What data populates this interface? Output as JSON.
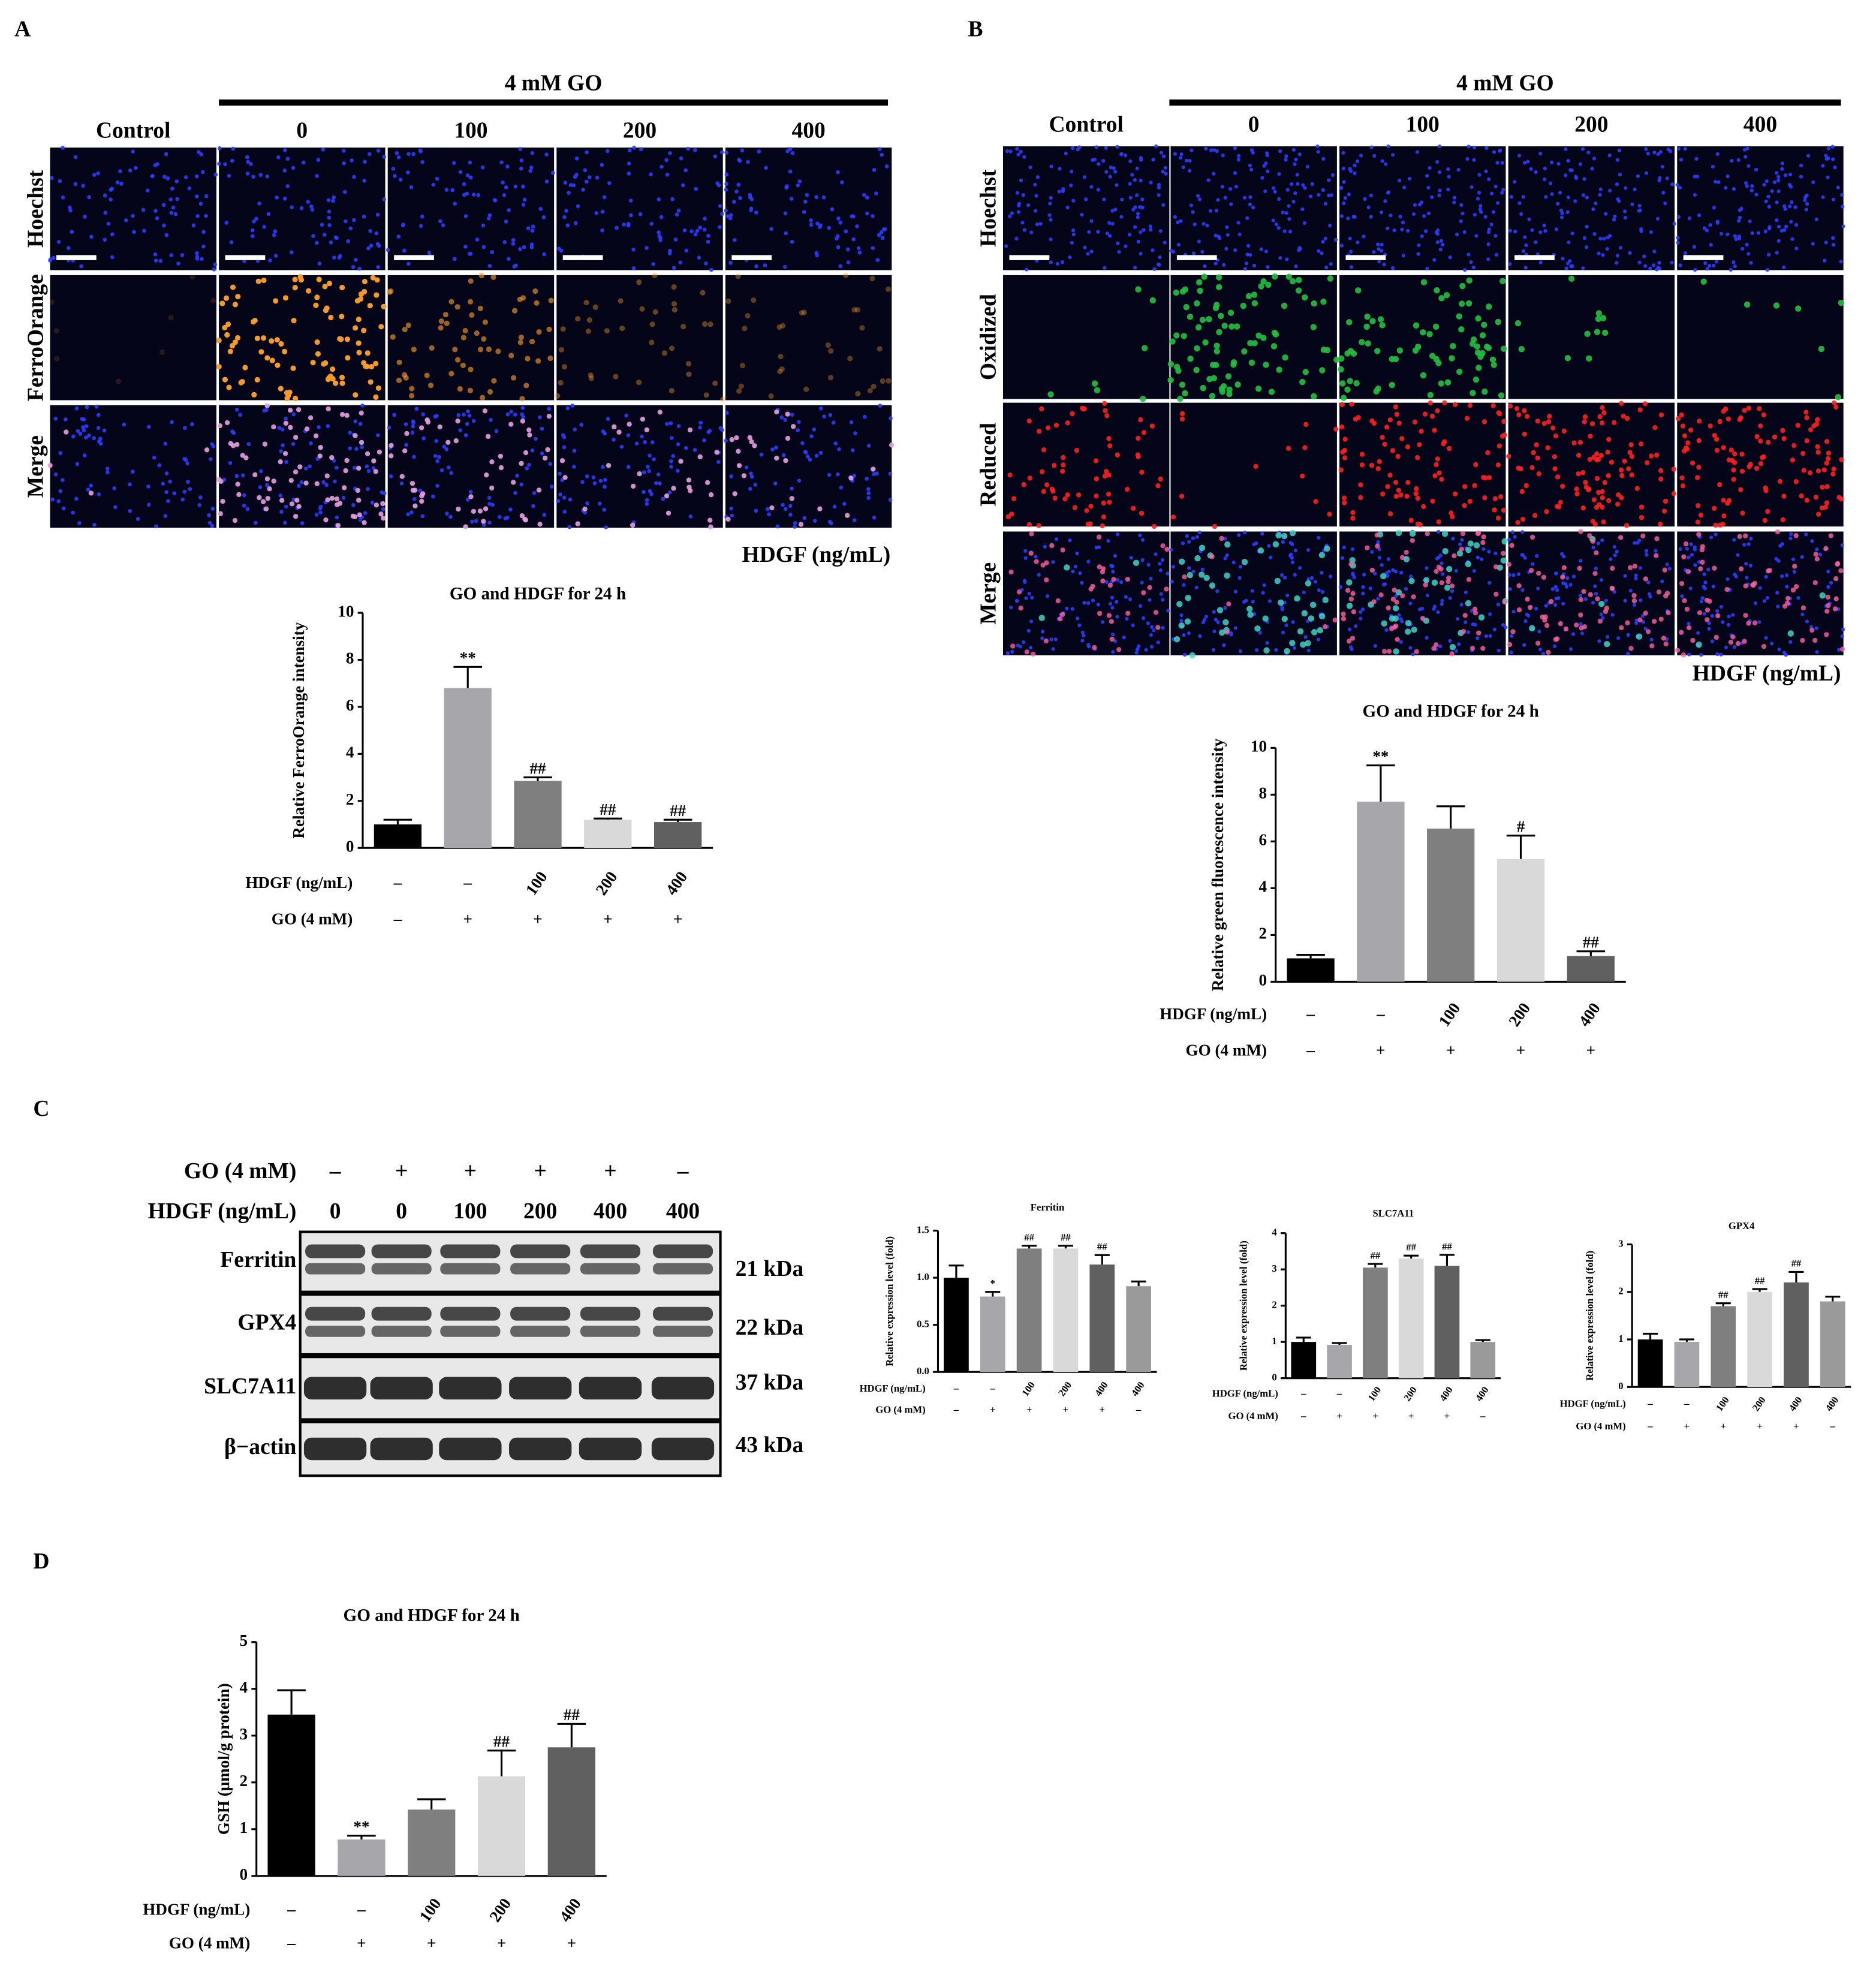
{
  "panel_labels": [
    "A",
    "B",
    "C",
    "D"
  ],
  "panel_a": {
    "group": "4 mM GO",
    "columns": [
      "Control",
      "0",
      "100",
      "200",
      "400"
    ],
    "rows": [
      "Hoechst",
      "FerroOrange",
      "Merge"
    ],
    "axis_label": "HDGF (ng/mL)"
  },
  "panel_b": {
    "group": "4 mM GO",
    "columns": [
      "Control",
      "0",
      "100",
      "200",
      "400"
    ],
    "rows": [
      "Hoechst",
      "Oxidized",
      "Reduced",
      "Merge"
    ],
    "axis_label": "HDGF (ng/mL)"
  },
  "blot": {
    "conditions": [
      {
        "label": "GO (4 mM)",
        "values": [
          "–",
          "+",
          "+",
          "+",
          "+",
          "–"
        ]
      },
      {
        "label": "HDGF (ng/mL)",
        "values": [
          "0",
          "0",
          "100",
          "200",
          "400",
          "400"
        ]
      }
    ],
    "bands": [
      {
        "name": "Ferritin",
        "size": "21 kDa"
      },
      {
        "name": "GPX4",
        "size": "22 kDa"
      },
      {
        "name": "SLC7A11",
        "size": "37 kDa"
      },
      {
        "name": "β−actin",
        "size": "43 kDa"
      }
    ]
  },
  "chart_data": [
    {
      "type": "bar",
      "title": "GO and HDGF for 24 h",
      "ylabel": "Relative FerroOrange intensity",
      "ylim": [
        0,
        10
      ],
      "yticks": [
        0,
        2,
        4,
        6,
        8,
        10
      ],
      "values": [
        1.0,
        6.8,
        2.85,
        1.2,
        1.1
      ],
      "errors": [
        0.2,
        0.9,
        0.15,
        0.05,
        0.1
      ],
      "annotations": [
        null,
        "**",
        "##",
        "##",
        "##"
      ],
      "colors": [
        "#000000",
        "#a6a6ab",
        "#7f7f7f",
        "#d9d9d9",
        "#606060"
      ],
      "conditions": [
        {
          "label": "HDGF (ng/mL)",
          "values": [
            "–",
            "–",
            "100",
            "200",
            "400"
          ]
        },
        {
          "label": "GO (4 mM)",
          "values": [
            "–",
            "+",
            "+",
            "+",
            "+"
          ]
        }
      ]
    },
    {
      "type": "bar",
      "title": "GO and HDGF for 24 h",
      "ylabel": "Relative green fluorescence intensity",
      "ylim": [
        0,
        10
      ],
      "yticks": [
        0,
        2,
        4,
        6,
        8,
        10
      ],
      "values": [
        1.0,
        7.7,
        6.55,
        5.25,
        1.1
      ],
      "errors": [
        0.15,
        1.55,
        0.95,
        1.0,
        0.2
      ],
      "annotations": [
        null,
        "**",
        null,
        "#",
        "##"
      ],
      "colors": [
        "#000000",
        "#a6a6ab",
        "#7f7f7f",
        "#d9d9d9",
        "#606060"
      ],
      "conditions": [
        {
          "label": "HDGF (ng/mL)",
          "values": [
            "–",
            "–",
            "100",
            "200",
            "400"
          ]
        },
        {
          "label": "GO (4 mM)",
          "values": [
            "–",
            "+",
            "+",
            "+",
            "+"
          ]
        }
      ]
    },
    {
      "type": "bar",
      "title": "Ferritin",
      "ylabel": "Relative expression level (fold)",
      "ylim": [
        0,
        1.5
      ],
      "yticks": [
        {
          "value": 0,
          "label": "0.0"
        },
        0.5,
        {
          "value": 1,
          "label": "1.0"
        },
        1.5
      ],
      "values": [
        1.0,
        0.8,
        1.31,
        1.31,
        1.14,
        0.91
      ],
      "errors": [
        0.13,
        0.05,
        0.03,
        0.03,
        0.1,
        0.05
      ],
      "annotations": [
        null,
        "*",
        "##",
        "##",
        "##",
        null
      ],
      "colors": [
        "#000000",
        "#a6a6ab",
        "#7f7f7f",
        "#d9d9d9",
        "#606060",
        "#9a9a9a"
      ],
      "conditions": [
        {
          "label": "HDGF (ng/mL)",
          "values": [
            "–",
            "–",
            "100",
            "200",
            "400",
            "400"
          ]
        },
        {
          "label": "GO (4 mM)",
          "values": [
            "–",
            "+",
            "+",
            "+",
            "+",
            "–"
          ]
        }
      ]
    },
    {
      "type": "bar",
      "title": "SLC7A11",
      "ylabel": "Relative expression level (fold)",
      "ylim": [
        0,
        4
      ],
      "yticks": [
        0,
        1,
        2,
        3,
        4
      ],
      "values": [
        1.0,
        0.92,
        3.05,
        3.3,
        3.1,
        1.0
      ],
      "errors": [
        0.12,
        0.05,
        0.1,
        0.08,
        0.3,
        0.05
      ],
      "annotations": [
        null,
        null,
        "##",
        "##",
        "##",
        null
      ],
      "colors": [
        "#000000",
        "#a6a6ab",
        "#7f7f7f",
        "#d9d9d9",
        "#606060",
        "#9a9a9a"
      ],
      "conditions": [
        {
          "label": "HDGF (ng/mL)",
          "values": [
            "–",
            "–",
            "100",
            "200",
            "400",
            "400"
          ]
        },
        {
          "label": "GO (4 mM)",
          "values": [
            "–",
            "+",
            "+",
            "+",
            "+",
            "–"
          ]
        }
      ]
    },
    {
      "type": "bar",
      "title": "GPX4",
      "ylabel": "Relative expression level (fold)",
      "ylim": [
        0,
        3
      ],
      "yticks": [
        0,
        1,
        2,
        3
      ],
      "values": [
        1.0,
        0.95,
        1.7,
        2.0,
        2.2,
        1.8
      ],
      "errors": [
        0.12,
        0.05,
        0.06,
        0.06,
        0.22,
        0.1
      ],
      "annotations": [
        null,
        null,
        "##",
        "##",
        "##",
        null
      ],
      "colors": [
        "#000000",
        "#a6a6ab",
        "#7f7f7f",
        "#d9d9d9",
        "#606060",
        "#9a9a9a"
      ],
      "conditions": [
        {
          "label": "HDGF (ng/mL)",
          "values": [
            "–",
            "–",
            "100",
            "200",
            "400",
            "400"
          ]
        },
        {
          "label": "GO (4 mM)",
          "values": [
            "–",
            "+",
            "+",
            "+",
            "+",
            "–"
          ]
        }
      ]
    },
    {
      "type": "bar",
      "title": "GO and HDGF for 24 h",
      "ylabel": "GSH (μmol/g protein)",
      "ylim": [
        0,
        5
      ],
      "yticks": [
        0,
        1,
        2,
        3,
        4,
        5
      ],
      "values": [
        3.45,
        0.78,
        1.42,
        2.13,
        2.75
      ],
      "errors": [
        0.52,
        0.08,
        0.22,
        0.55,
        0.5
      ],
      "annotations": [
        null,
        "**",
        null,
        "##",
        "##"
      ],
      "colors": [
        "#000000",
        "#a6a6ab",
        "#7f7f7f",
        "#d9d9d9",
        "#606060"
      ],
      "conditions": [
        {
          "label": "HDGF (ng/mL)",
          "values": [
            "–",
            "–",
            "100",
            "200",
            "400"
          ]
        },
        {
          "label": "GO (4 mM)",
          "values": [
            "–",
            "+",
            "+",
            "+",
            "+"
          ]
        }
      ]
    }
  ]
}
